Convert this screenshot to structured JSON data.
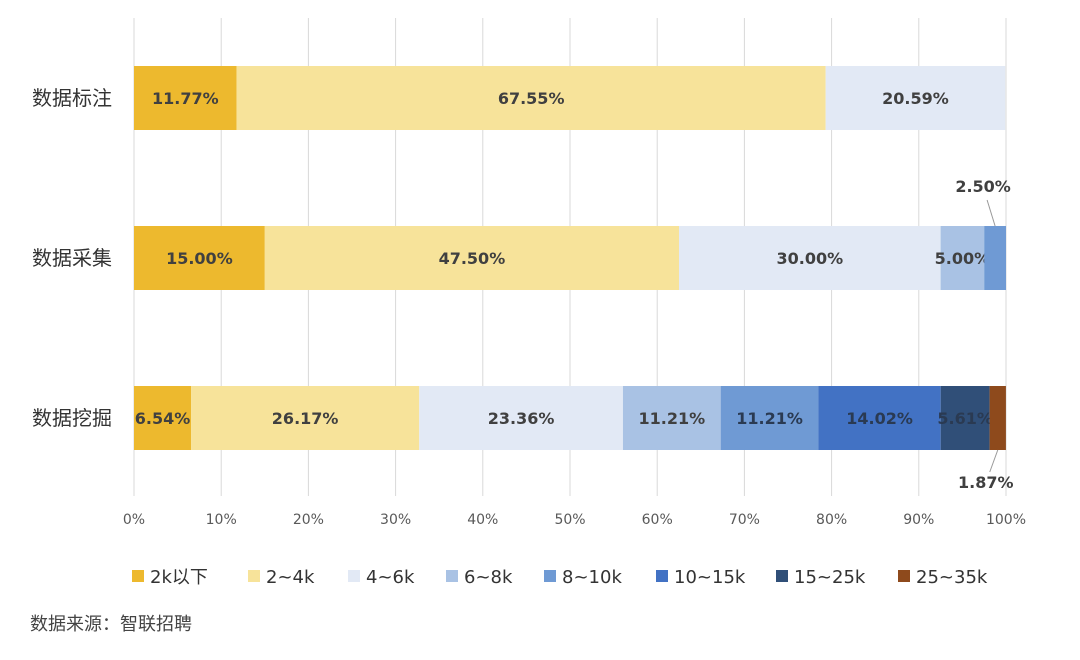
{
  "chart_data": {
    "type": "bar",
    "orientation": "horizontal",
    "stacked": true,
    "percent": true,
    "categories": [
      "数据标注",
      "数据采集",
      "数据挖掘"
    ],
    "series": [
      {
        "name": "2k以下",
        "color": "#EDB92E",
        "values": [
          11.77,
          15.0,
          6.54
        ]
      },
      {
        "name": "2~4k",
        "color": "#F7E39A",
        "values": [
          67.55,
          47.5,
          26.17
        ]
      },
      {
        "name": "4~6k",
        "color": "#E2E9F5",
        "values": [
          20.59,
          30.0,
          23.36
        ]
      },
      {
        "name": "6~8k",
        "color": "#A9C2E4",
        "values": [
          0,
          5.0,
          11.21
        ]
      },
      {
        "name": "8~10k",
        "color": "#6F9AD4",
        "values": [
          0,
          2.5,
          11.21
        ]
      },
      {
        "name": "10~15k",
        "color": "#4272C4",
        "values": [
          0,
          0,
          14.02
        ]
      },
      {
        "name": "15~25k",
        "color": "#304F78",
        "values": [
          0,
          0,
          5.61
        ]
      },
      {
        "name": "25~35k",
        "color": "#8E4A1C",
        "values": [
          0,
          0,
          1.87
        ]
      }
    ],
    "data_labels": [
      [
        "11.77%",
        "67.55%",
        "20.59%",
        "",
        "",
        "",
        "",
        ""
      ],
      [
        "15.00%",
        "47.50%",
        "30.00%",
        "5.00%",
        "2.50%",
        "",
        "",
        ""
      ],
      [
        "6.54%",
        "26.17%",
        "23.36%",
        "11.21%",
        "11.21%",
        "14.02%",
        "5.61%",
        "1.87%"
      ]
    ],
    "xlim": [
      0,
      100
    ],
    "xticks": [
      "0%",
      "10%",
      "20%",
      "30%",
      "40%",
      "50%",
      "60%",
      "70%",
      "80%",
      "90%",
      "100%"
    ],
    "grid": true,
    "legend_position": "bottom"
  },
  "source": "数据来源：智联招聘",
  "colors": {
    "grid": "#D9D9D9",
    "label_dark": "#404040",
    "tick": "#595959"
  }
}
